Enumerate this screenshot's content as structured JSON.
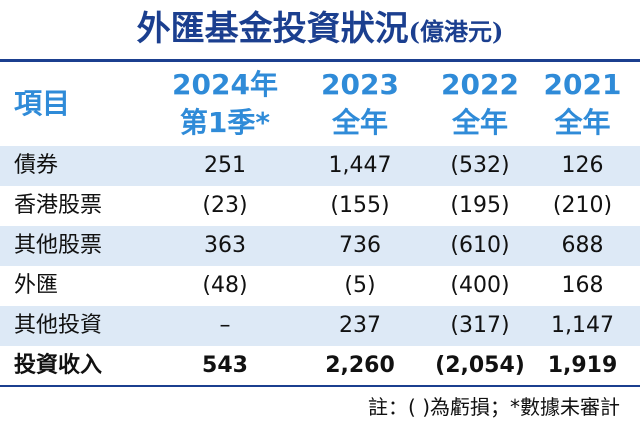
{
  "title": "外匯基金投資狀況",
  "unit": "(億港元)",
  "chart_data": {
    "type": "table",
    "columns": [
      {
        "line1": "項目",
        "line2": ""
      },
      {
        "line1": "2024年",
        "line2": "第1季*"
      },
      {
        "line1": "2023",
        "line2": "全年"
      },
      {
        "line1": "2022",
        "line2": "全年"
      },
      {
        "line1": "2021",
        "line2": "全年"
      }
    ],
    "rows": [
      {
        "label": "債券",
        "values": [
          "251",
          "1,447",
          "(532)",
          "126"
        ]
      },
      {
        "label": "香港股票",
        "values": [
          "(23)",
          "(155)",
          "(195)",
          "(210)"
        ]
      },
      {
        "label": "其他股票",
        "values": [
          "363",
          "736",
          "(610)",
          "688"
        ]
      },
      {
        "label": "外匯",
        "values": [
          "(48)",
          "(5)",
          "(400)",
          "168"
        ]
      },
      {
        "label": "其他投資",
        "values": [
          "–",
          "237",
          "(317)",
          "1,147"
        ]
      },
      {
        "label": "投資收入",
        "values": [
          "543",
          "2,260",
          "(2,054)",
          "1,919"
        ]
      }
    ]
  },
  "note": "註：( )為虧損；*數據未審計"
}
